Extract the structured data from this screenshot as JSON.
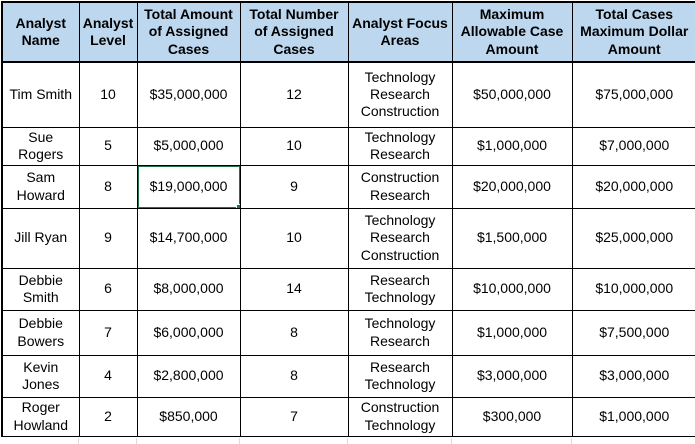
{
  "table": {
    "columns": [
      "Analyst\nName",
      "Analyst\nLevel",
      "Total Amount\nof Assigned\nCases",
      "Total Number\nof Assigned\nCases",
      "Analyst Focus\nAreas",
      "Maximum\nAllowable Case\nAmount",
      "Total Cases\nMaximum Dollar\nAmount"
    ],
    "rows": [
      [
        "Tim Smith",
        "10",
        "$35,000,000",
        "12",
        "Technology\nResearch\nConstruction",
        "$50,000,000",
        "$75,000,000"
      ],
      [
        "Sue\nRogers",
        "5",
        "$5,000,000",
        "10",
        "Technology\nResearch",
        "$1,000,000",
        "$7,000,000"
      ],
      [
        "Sam\nHoward",
        "8",
        "$19,000,000",
        "9",
        "Construction\nResearch",
        "$20,000,000",
        "$20,000,000"
      ],
      [
        "Jill Ryan",
        "9",
        "$14,700,000",
        "10",
        "Technology\nResearch\nConstruction",
        "$1,500,000",
        "$25,000,000"
      ],
      [
        "Debbie\nSmith",
        "6",
        "$8,000,000",
        "14",
        "Research\nTechnology",
        "$10,000,000",
        "$10,000,000"
      ],
      [
        "Debbie\nBowers",
        "7",
        "$6,000,000",
        "8",
        "Technology\nResearch",
        "$1,000,000",
        "$7,500,000"
      ],
      [
        "Kevin\nJones",
        "4",
        "$2,800,000",
        "8",
        "Research\nTechnology",
        "$3,000,000",
        "$3,000,000"
      ],
      [
        "Roger\nHowland",
        "2",
        "$850,000",
        "7",
        "Construction\nTechnology",
        "$300,000",
        "$1,000,000"
      ]
    ],
    "selection": {
      "row_index": 2,
      "col_index": 2,
      "value": "$19,000,000"
    }
  },
  "colors": {
    "header_bg": "#BDD7EE",
    "cell_border": "#000000",
    "selection_green": "#217346",
    "empty_gridline": "#D6DCE4"
  }
}
